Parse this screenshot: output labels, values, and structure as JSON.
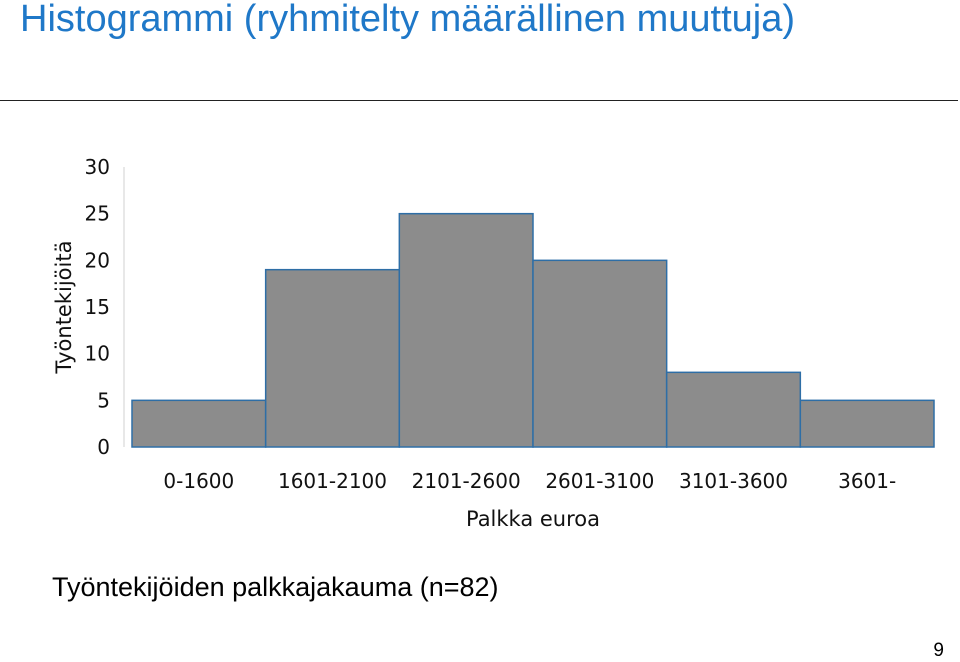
{
  "slide": {
    "title": "Histogrammi (ryhmitelty määrällinen muuttuja)",
    "caption": "Työntekijöiden palkkajakauma (n=82)",
    "page_number": "9"
  },
  "colors": {
    "title": "#1f78c8",
    "bar_fill": "#8c8c8c",
    "bar_stroke": "#2e6ea6"
  },
  "chart_data": {
    "type": "bar",
    "title": "",
    "categories": [
      "0-1600",
      "1601-2100",
      "2101-2600",
      "2601-3100",
      "3101-3600",
      "3601-"
    ],
    "values": [
      5,
      19,
      25,
      20,
      8,
      5
    ],
    "xlabel": "Palkka euroa",
    "ylabel": "Työntekijöitä",
    "ylim": [
      0,
      30
    ],
    "yticks": [
      0,
      5,
      10,
      15,
      20,
      25,
      30
    ],
    "grid": false,
    "legend": "none"
  }
}
